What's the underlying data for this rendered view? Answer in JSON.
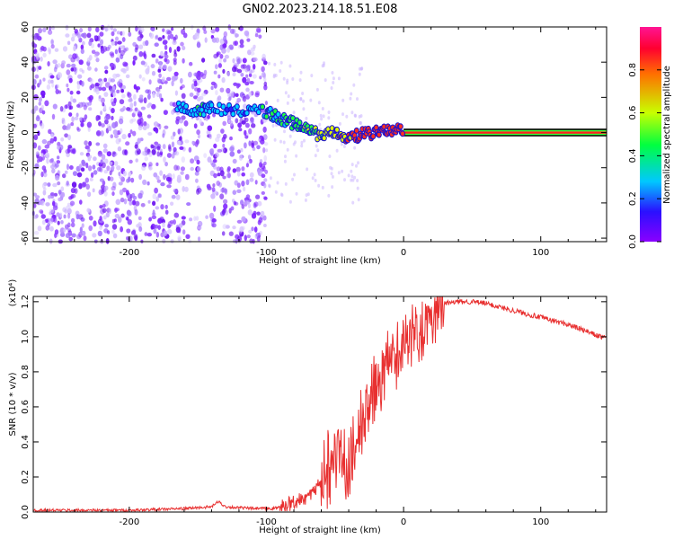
{
  "title": "GN02.2023.214.18.51.E08",
  "chart_data": [
    {
      "type": "heatmap",
      "xlabel": "Height of straight line (km)",
      "ylabel": "Frequency (Hz)",
      "xlim": [
        -270,
        148
      ],
      "ylim": [
        -62,
        60
      ],
      "xticks": [
        -200,
        -100,
        0,
        100
      ],
      "yticks": [
        60,
        40,
        20,
        0,
        -20,
        -40,
        -60
      ],
      "colorbar": {
        "label": "Normalized spectral amplitude",
        "range": [
          0,
          1
        ],
        "ticks": [
          0.0,
          0.2,
          0.4,
          0.6,
          0.8
        ],
        "colormap": [
          "#8a00ff",
          "#1a1aff",
          "#00d0ff",
          "#00ff40",
          "#d0ff00",
          "#ff6a00",
          "#ff0030",
          "#ff1493"
        ]
      },
      "signal_track": {
        "x": [
          -165,
          -150,
          -140,
          -120,
          -100,
          -90,
          -80,
          -70,
          -60,
          -50,
          -40,
          -30,
          -20,
          -10,
          0,
          20,
          60,
          100,
          148
        ],
        "freq_hz": [
          15,
          12,
          14,
          12,
          12,
          8,
          5,
          2,
          -2,
          0,
          -3,
          -1,
          0,
          1,
          2,
          0,
          0,
          0,
          0
        ],
        "amplitude": [
          0.3,
          0.35,
          0.3,
          0.25,
          0.35,
          0.4,
          0.45,
          0.5,
          0.55,
          0.65,
          0.75,
          0.8,
          0.85,
          0.85,
          0.9,
          0.92,
          0.95,
          0.95,
          0.95
        ]
      }
    },
    {
      "type": "line",
      "xlabel": "Height of straight line (km)",
      "ylabel": "SNR (10 * v/v)",
      "yscale_label": "(x10⁴)",
      "xlim": [
        -270,
        148
      ],
      "ylim": [
        0,
        1.23
      ],
      "xticks": [
        -200,
        -100,
        0,
        100
      ],
      "yticks": [
        0.0,
        0.2,
        0.4,
        0.6,
        0.8,
        1.0,
        1.2
      ],
      "color": "#e83030",
      "series": [
        {
          "x": [
            -270,
            -230,
            -200,
            -160,
            -140,
            -135,
            -130,
            -110,
            -95,
            -85,
            -75,
            -65,
            -60,
            -55,
            -50,
            -45,
            -40,
            -35,
            -30,
            -25,
            -20,
            -15,
            -10,
            -5,
            0,
            5,
            10,
            15,
            20,
            25,
            30,
            40,
            50,
            60,
            70,
            80,
            90,
            100,
            110,
            120,
            130,
            140,
            148
          ],
          "values": [
            0.01,
            0.01,
            0.01,
            0.02,
            0.03,
            0.06,
            0.03,
            0.02,
            0.02,
            0.04,
            0.07,
            0.12,
            0.18,
            0.28,
            0.38,
            0.33,
            0.25,
            0.35,
            0.5,
            0.6,
            0.72,
            0.78,
            0.85,
            0.88,
            0.95,
            0.98,
            1.05,
            1.08,
            1.12,
            1.17,
            1.19,
            1.2,
            1.2,
            1.19,
            1.17,
            1.15,
            1.13,
            1.11,
            1.09,
            1.07,
            1.04,
            1.01,
            0.99
          ]
        }
      ]
    }
  ]
}
